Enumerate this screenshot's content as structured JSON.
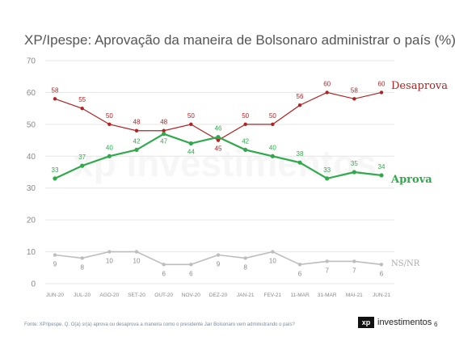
{
  "title": "XP/Ipespe: Aprovação da maneira de Bolsonaro administrar o país (%)",
  "footer_note": "Fonte: XP/Ipespe. Q. O(a) sr(a) aprova ou desaprova a maneira como o presidente Jair Bolsonaro vem administrando o país?",
  "brand": {
    "mark": "xp",
    "word": "investimentos"
  },
  "watermark": "xp investimentos",
  "page_number": "6",
  "colors": {
    "desaprova": "#b22222",
    "aprova": "#2eaa4a",
    "nsnr": "#bdbdbd",
    "axis_text": "#888888",
    "grid": "#e6e6e6"
  },
  "chart_data": {
    "type": "line",
    "categories": [
      "JUN-20",
      "JUL-20",
      "AGO-20",
      "SET-20",
      "OUT-20",
      "NOV-20",
      "DEZ-20",
      "JAN-21",
      "FEV-21",
      "11-MAR",
      "31-MAR",
      "MAI-21",
      "JUN-21"
    ],
    "ylim": [
      0,
      70
    ],
    "yticks": [
      "0",
      "10",
      "20",
      "30",
      "40",
      "50",
      "60",
      "70"
    ],
    "grid": true,
    "series": [
      {
        "name": "Desaprova",
        "values": [
          58,
          55,
          50,
          48,
          48,
          50,
          45,
          50,
          50,
          56,
          60,
          58,
          60
        ]
      },
      {
        "name": "Aprova",
        "values": [
          33,
          37,
          40,
          42,
          47,
          44,
          46,
          42,
          40,
          38,
          33,
          35,
          34
        ]
      },
      {
        "name": "NS/NR",
        "values": [
          9,
          8,
          10,
          10,
          6,
          6,
          9,
          8,
          10,
          6,
          7,
          7,
          6
        ]
      }
    ]
  }
}
